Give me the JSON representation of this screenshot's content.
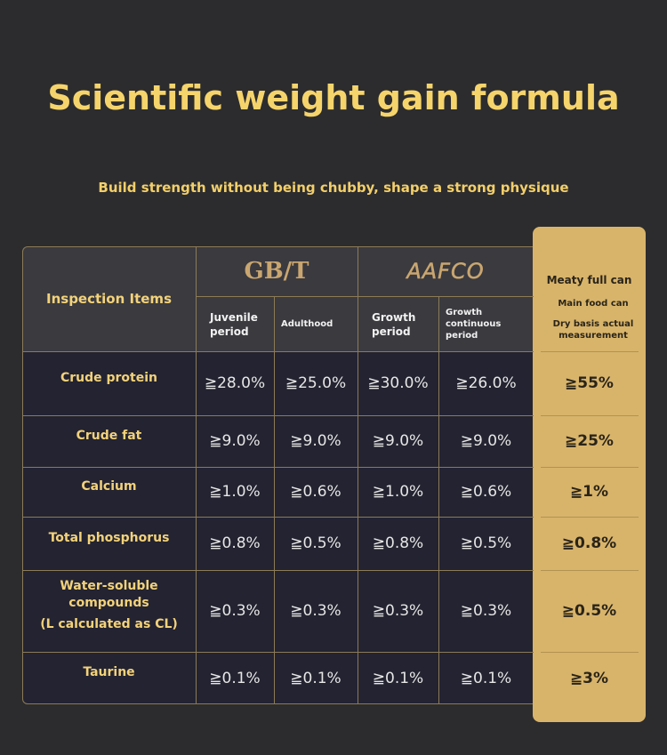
{
  "header": {
    "title": "Scientific weight gain formula",
    "subtitle": "Build strength without being chubby, shape a strong physique"
  },
  "table": {
    "corner": "Inspection Items",
    "groups": [
      "GB/T",
      "AAFCO"
    ],
    "columns": [
      "Juvenile period",
      "Adulthood",
      "Growth period",
      "Growth continuous period"
    ],
    "highlight": {
      "title": "Meaty full can",
      "lines": [
        "Main food can",
        "Dry basis actual measurement"
      ]
    },
    "rows": [
      {
        "item": [
          "Crude protein"
        ],
        "values": [
          "≧28.0%",
          "≧25.0%",
          "≧30.0%",
          "≧26.0%"
        ],
        "highlight": "≧55%"
      },
      {
        "item": [
          "Crude fat"
        ],
        "values": [
          "≧9.0%",
          "≧9.0%",
          "≧9.0%",
          "≧9.0%"
        ],
        "highlight": "≧25%"
      },
      {
        "item": [
          "Calcium"
        ],
        "values": [
          "≧1.0%",
          "≧0.6%",
          "≧1.0%",
          "≧0.6%"
        ],
        "highlight": "≧1%"
      },
      {
        "item": [
          "Total phosphorus"
        ],
        "values": [
          "≧0.8%",
          "≧0.5%",
          "≧0.8%",
          "≧0.5%"
        ],
        "highlight": "≧0.8%"
      },
      {
        "item": [
          "Water-soluble",
          "compounds",
          "(L calculated as CL)"
        ],
        "values": [
          "≧0.3%",
          "≧0.3%",
          "≧0.3%",
          "≧0.3%"
        ],
        "highlight": "≧0.5%"
      },
      {
        "item": [
          "Taurine"
        ],
        "values": [
          "≧0.1%",
          "≧0.1%",
          "≧0.1%",
          "≧0.1%"
        ],
        "highlight": "≧3%"
      }
    ]
  }
}
